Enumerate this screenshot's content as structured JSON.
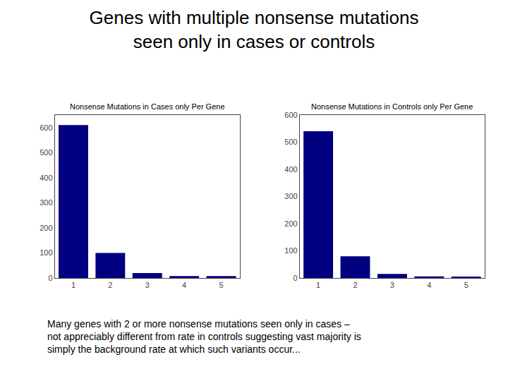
{
  "title": "Genes with multiple nonsense mutations\nseen only in cases or controls",
  "subtitle": "Many genes with 2 or more nonsense mutations seen only in cases –\nnot appreciably different from rate in controls suggesting vast majority is\nsimply the background rate at which such variants occur...",
  "chart_data": [
    {
      "type": "bar",
      "title": "Nonsense Mutations in Cases only Per Gene",
      "categories": [
        1,
        2,
        3,
        4,
        5
      ],
      "values": [
        610,
        100,
        20,
        8,
        8
      ],
      "color": "#000080",
      "ylim": [
        0,
        650
      ],
      "yticks": [
        0,
        100,
        200,
        300,
        400,
        500,
        600
      ],
      "grid": false
    },
    {
      "type": "bar",
      "title": "Nonsense Mutations in Controls only Per Gene",
      "categories": [
        1,
        2,
        3,
        4,
        5
      ],
      "values": [
        540,
        80,
        15,
        6,
        5
      ],
      "color": "#000080",
      "ylim": [
        0,
        600
      ],
      "yticks": [
        0,
        100,
        200,
        300,
        400,
        500,
        600
      ],
      "grid": false
    }
  ]
}
